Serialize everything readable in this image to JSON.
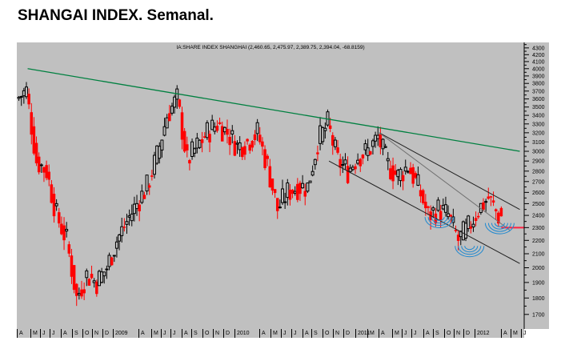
{
  "page": {
    "title": "SHANGAI INDEX. Semanal."
  },
  "chart": {
    "caption": "IA:SHARE INDEX SHANGHAI (2,460.65, 2,475.97, 2,389.75, 2,394.04, -68.8159)",
    "colors": {
      "background": "#c0c0c0",
      "up_candle": "#000000",
      "down_candle": "#ff0000",
      "long_trendline": "#008040",
      "channel_lines": "#202020",
      "inner_trendline": "#707070",
      "support_line": "#ff2040",
      "arcs": "#1e88d0"
    },
    "y_ticks": [
      "4300",
      "4200",
      "4100",
      "4000",
      "3900",
      "3800",
      "3700",
      "3600",
      "3500",
      "3400",
      "3300",
      "3200",
      "3100",
      "3000",
      "2900",
      "2800",
      "2700",
      "2600",
      "2500",
      "2400",
      "2300",
      "2200",
      "2100",
      "2000",
      "1900",
      "1800",
      "1700"
    ],
    "x_labels": [
      {
        "label": "A",
        "x": 0
      },
      {
        "label": "M",
        "x": 17
      },
      {
        "label": "J",
        "x": 29
      },
      {
        "label": "J",
        "x": 41
      },
      {
        "label": "A",
        "x": 55
      },
      {
        "label": "S",
        "x": 69
      },
      {
        "label": "O",
        "x": 82
      },
      {
        "label": "N",
        "x": 94
      },
      {
        "label": "D",
        "x": 107
      },
      {
        "label": "2009",
        "x": 120
      },
      {
        "label": "A",
        "x": 152
      },
      {
        "label": "M",
        "x": 168
      },
      {
        "label": "J",
        "x": 180
      },
      {
        "label": "J",
        "x": 192
      },
      {
        "label": "A",
        "x": 206
      },
      {
        "label": "S",
        "x": 218
      },
      {
        "label": "O",
        "x": 232
      },
      {
        "label": "N",
        "x": 245
      },
      {
        "label": "D",
        "x": 258
      },
      {
        "label": "2010",
        "x": 272
      },
      {
        "label": "A",
        "x": 303
      },
      {
        "label": "M",
        "x": 317
      },
      {
        "label": "J",
        "x": 330
      },
      {
        "label": "J",
        "x": 343
      },
      {
        "label": "A",
        "x": 357
      },
      {
        "label": "S",
        "x": 368
      },
      {
        "label": "O",
        "x": 382
      },
      {
        "label": "N",
        "x": 395
      },
      {
        "label": "D",
        "x": 408
      },
      {
        "label": "2011",
        "x": 423
      },
      {
        "label": "M",
        "x": 438
      },
      {
        "label": "A",
        "x": 452
      },
      {
        "label": "M",
        "x": 469
      },
      {
        "label": "J",
        "x": 481
      },
      {
        "label": "J",
        "x": 493
      },
      {
        "label": "A",
        "x": 508
      },
      {
        "label": "S",
        "x": 520
      },
      {
        "label": "O",
        "x": 534
      },
      {
        "label": "N",
        "x": 546
      },
      {
        "label": "D",
        "x": 558
      },
      {
        "label": "2012",
        "x": 572
      },
      {
        "label": "A",
        "x": 605
      },
      {
        "label": "M",
        "x": 617
      },
      {
        "label": "J",
        "x": 630
      }
    ]
  },
  "chart_data": {
    "type": "candlestick",
    "title": "SHANGAI INDEX. Semanal.",
    "subtitle": "IA:SHARE INDEX SHANGHAI (2,460.65, 2,475.97, 2,389.75, 2,394.04, -68.8159)",
    "last_bar": {
      "open": 2460.65,
      "high": 2475.97,
      "low": 2389.75,
      "close": 2394.04,
      "change": -68.8159
    },
    "y_scale": "log",
    "ylim": [
      1650,
      4350
    ],
    "y_ticks": [
      1700,
      1800,
      1900,
      2000,
      2100,
      2200,
      2300,
      2400,
      2500,
      2600,
      2700,
      2800,
      2900,
      3000,
      3100,
      3200,
      3300,
      3400,
      3500,
      3600,
      3700,
      3800,
      3900,
      4000,
      4100,
      4200,
      4300
    ],
    "x_range": [
      "2008-04",
      "2012-06"
    ],
    "frequency": "weekly",
    "close_path": [
      {
        "date": "2008-04",
        "close": 3600
      },
      {
        "date": "2008-05",
        "close": 3700
      },
      {
        "date": "2008-06",
        "close": 2900
      },
      {
        "date": "2008-07",
        "close": 2800
      },
      {
        "date": "2008-08",
        "close": 2400
      },
      {
        "date": "2008-09",
        "close": 2200
      },
      {
        "date": "2008-10",
        "close": 1800
      },
      {
        "date": "2008-11",
        "close": 1950
      },
      {
        "date": "2008-12",
        "close": 1900
      },
      {
        "date": "2009-01",
        "close": 2000
      },
      {
        "date": "2009-02",
        "close": 2200
      },
      {
        "date": "2009-03",
        "close": 2350
      },
      {
        "date": "2009-04",
        "close": 2500
      },
      {
        "date": "2009-05",
        "close": 2650
      },
      {
        "date": "2009-06",
        "close": 2950
      },
      {
        "date": "2009-07",
        "close": 3400
      },
      {
        "date": "2009-08",
        "close": 3600
      },
      {
        "date": "2009-09",
        "close": 2900
      },
      {
        "date": "2009-10",
        "close": 3050
      },
      {
        "date": "2009-11",
        "close": 3200
      },
      {
        "date": "2009-12",
        "close": 3300
      },
      {
        "date": "2010-01",
        "close": 3200
      },
      {
        "date": "2010-02",
        "close": 3050
      },
      {
        "date": "2010-03",
        "close": 3100
      },
      {
        "date": "2010-04",
        "close": 3200
      },
      {
        "date": "2010-05",
        "close": 2850
      },
      {
        "date": "2010-06",
        "close": 2450
      },
      {
        "date": "2010-07",
        "close": 2600
      },
      {
        "date": "2010-08",
        "close": 2650
      },
      {
        "date": "2010-09",
        "close": 2650
      },
      {
        "date": "2010-10",
        "close": 3100
      },
      {
        "date": "2010-11",
        "close": 3300
      },
      {
        "date": "2010-12",
        "close": 2900
      },
      {
        "date": "2011-01",
        "close": 2800
      },
      {
        "date": "2011-02",
        "close": 2950
      },
      {
        "date": "2011-03",
        "close": 3000
      },
      {
        "date": "2011-04",
        "close": 3150
      },
      {
        "date": "2011-05",
        "close": 2850
      },
      {
        "date": "2011-06",
        "close": 2750
      },
      {
        "date": "2011-07",
        "close": 2850
      },
      {
        "date": "2011-08",
        "close": 2650
      },
      {
        "date": "2011-09",
        "close": 2400
      },
      {
        "date": "2011-10",
        "close": 2450
      },
      {
        "date": "2011-11",
        "close": 2400
      },
      {
        "date": "2011-12",
        "close": 2200
      },
      {
        "date": "2012-01",
        "close": 2300
      },
      {
        "date": "2012-02",
        "close": 2450
      },
      {
        "date": "2012-03",
        "close": 2550
      },
      {
        "date": "2012-04",
        "close": 2394
      }
    ],
    "annotations": [
      {
        "type": "trendline",
        "name": "long-term resistance",
        "color": "#008040",
        "from": {
          "date": "2008-05",
          "value": 4000
        },
        "to": {
          "date": "2012-06",
          "value": 3000
        }
      },
      {
        "type": "trendline",
        "name": "channel upper",
        "from": {
          "date": "2011-04",
          "value": 3200
        },
        "to": {
          "date": "2012-06",
          "value": 2450
        }
      },
      {
        "type": "trendline",
        "name": "channel lower",
        "from": {
          "date": "2010-11",
          "value": 2900
        },
        "to": {
          "date": "2012-06",
          "value": 2030
        }
      },
      {
        "type": "trendline",
        "name": "inner trendline",
        "from": {
          "date": "2011-04",
          "value": 3200
        },
        "to": {
          "date": "2012-05",
          "value": 2280
        }
      },
      {
        "type": "hline",
        "name": "support",
        "color": "#ff2040",
        "value": 2300,
        "from": "2012-04",
        "to": "2012-06"
      },
      {
        "type": "arc-marker",
        "name": "bottom-1",
        "date": "2011-10",
        "value": 2400
      },
      {
        "type": "arc-marker",
        "name": "bottom-2",
        "date": "2012-01",
        "value": 2170
      },
      {
        "type": "arc-marker",
        "name": "bottom-3",
        "date": "2012-04",
        "value": 2350
      }
    ],
    "xlabel": "",
    "ylabel": "",
    "grid": false,
    "legend": null
  }
}
